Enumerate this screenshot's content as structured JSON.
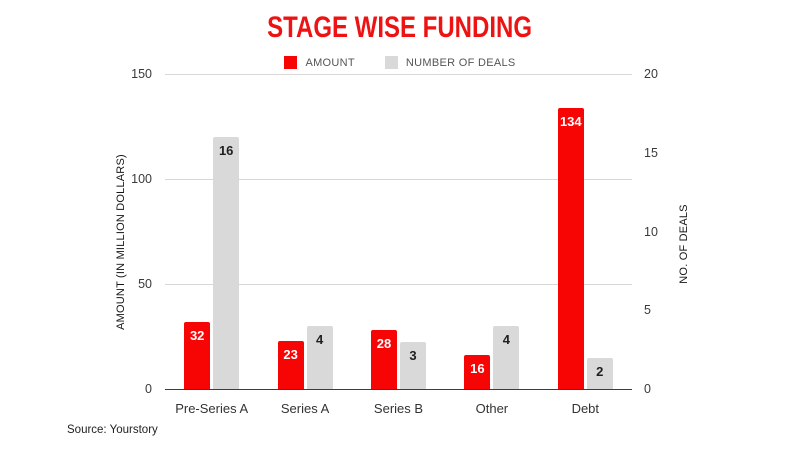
{
  "chart_data": {
    "type": "bar",
    "title": "STAGE WISE FUNDING",
    "title_color": "#ee1313",
    "categories": [
      "Pre-Series A",
      "Series A",
      "Series B",
      "Other",
      "Debt"
    ],
    "series": [
      {
        "name": "AMOUNT",
        "color": "#f70505",
        "value_label_color": "#ffffff",
        "axis": "left",
        "values": [
          32,
          23,
          28,
          16,
          134
        ]
      },
      {
        "name": "NUMBER OF DEALS",
        "color": "#d9d9d9",
        "value_label_color": "#1f1f1f",
        "axis": "right",
        "values": [
          16,
          4,
          3,
          4,
          2
        ]
      }
    ],
    "left_axis": {
      "label": "AMOUNT (IN MILLION DOLLARS)",
      "min": 0,
      "max": 150,
      "ticks": [
        0,
        50,
        100,
        150
      ]
    },
    "right_axis": {
      "label": "NO. OF DEALS",
      "min": 0,
      "max": 20,
      "ticks": [
        0,
        5,
        10,
        15,
        20
      ]
    },
    "legend_position": "top",
    "grid": "horizontal",
    "source": "Source: Yourstory"
  }
}
